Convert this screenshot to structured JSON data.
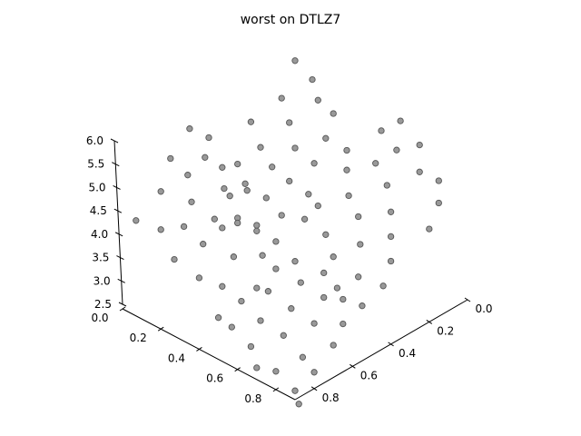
{
  "chart_data": {
    "type": "scatter",
    "projection": "3d",
    "title": "worst on DTLZ7",
    "xlabel": "",
    "ylabel": "",
    "zlabel": "",
    "xlim": [
      0.0,
      0.9
    ],
    "ylim": [
      0.0,
      0.9
    ],
    "zlim": [
      2.5,
      6.0
    ],
    "x_ticks": [
      "0.0",
      "0.2",
      "0.4",
      "0.6",
      "0.8"
    ],
    "y_ticks": [
      "0.0",
      "0.2",
      "0.4",
      "0.6",
      "0.8"
    ],
    "z_ticks": [
      "2.5",
      "3.0",
      "3.5",
      "4.0",
      "4.5",
      "5.0",
      "5.5",
      "6.0"
    ],
    "grid": false,
    "marker_color": "#999999",
    "marker_edge": "#555555",
    "series": [
      {
        "points": [
          {
            "x": 0.05,
            "y": 0.05,
            "z": 5.9
          },
          {
            "x": 0.12,
            "y": 0.03,
            "z": 5.6
          },
          {
            "x": 0.2,
            "y": 0.08,
            "z": 5.45
          },
          {
            "x": 0.08,
            "y": 0.15,
            "z": 5.4
          },
          {
            "x": 0.15,
            "y": 0.18,
            "z": 5.1
          },
          {
            "x": 0.25,
            "y": 0.05,
            "z": 5.2
          },
          {
            "x": 0.02,
            "y": 0.25,
            "z": 5.0
          },
          {
            "x": 0.22,
            "y": 0.22,
            "z": 4.8
          },
          {
            "x": 0.1,
            "y": 0.28,
            "z": 4.7
          },
          {
            "x": 0.28,
            "y": 0.12,
            "z": 4.9
          },
          {
            "x": 0.18,
            "y": 0.3,
            "z": 4.5
          },
          {
            "x": 0.05,
            "y": 0.35,
            "z": 4.4
          },
          {
            "x": 0.3,
            "y": 0.2,
            "z": 4.6
          },
          {
            "x": 0.25,
            "y": 0.28,
            "z": 4.3
          },
          {
            "x": 0.12,
            "y": 0.38,
            "z": 4.2
          },
          {
            "x": 0.35,
            "y": 0.08,
            "z": 4.7
          },
          {
            "x": 0.2,
            "y": 0.35,
            "z": 4.0
          },
          {
            "x": 0.32,
            "y": 0.25,
            "z": 4.1
          },
          {
            "x": 0.08,
            "y": 0.42,
            "z": 3.95
          },
          {
            "x": 0.28,
            "y": 0.35,
            "z": 3.8
          },
          {
            "x": 0.15,
            "y": 0.45,
            "z": 3.7
          },
          {
            "x": 0.35,
            "y": 0.3,
            "z": 3.75
          },
          {
            "x": 0.22,
            "y": 0.42,
            "z": 3.5
          },
          {
            "x": 0.3,
            "y": 0.4,
            "z": 3.4
          },
          {
            "x": 0.1,
            "y": 0.48,
            "z": 3.45
          },
          {
            "x": 0.05,
            "y": 0.6,
            "z": 5.75
          },
          {
            "x": 0.1,
            "y": 0.55,
            "z": 5.55
          },
          {
            "x": 0.15,
            "y": 0.62,
            "z": 5.4
          },
          {
            "x": 0.05,
            "y": 0.7,
            "z": 5.35
          },
          {
            "x": 0.2,
            "y": 0.58,
            "z": 5.2
          },
          {
            "x": 0.12,
            "y": 0.68,
            "z": 5.1
          },
          {
            "x": 0.08,
            "y": 0.78,
            "z": 4.9
          },
          {
            "x": 0.25,
            "y": 0.62,
            "z": 4.95
          },
          {
            "x": 0.18,
            "y": 0.72,
            "z": 4.75
          },
          {
            "x": 0.3,
            "y": 0.55,
            "z": 4.85
          },
          {
            "x": 0.22,
            "y": 0.8,
            "z": 4.5
          },
          {
            "x": 0.28,
            "y": 0.7,
            "z": 4.55
          },
          {
            "x": 0.15,
            "y": 0.85,
            "z": 4.4
          },
          {
            "x": 0.35,
            "y": 0.65,
            "z": 4.5
          },
          {
            "x": 0.05,
            "y": 0.88,
            "z": 4.45
          },
          {
            "x": 0.3,
            "y": 0.78,
            "z": 4.25
          },
          {
            "x": 0.38,
            "y": 0.58,
            "z": 4.35
          },
          {
            "x": 0.25,
            "y": 0.88,
            "z": 4.05
          },
          {
            "x": 0.4,
            "y": 0.72,
            "z": 4.05
          },
          {
            "x": 0.35,
            "y": 0.85,
            "z": 3.8
          },
          {
            "x": 0.45,
            "y": 0.62,
            "z": 3.95
          },
          {
            "x": 0.42,
            "y": 0.8,
            "z": 3.65
          },
          {
            "x": 0.5,
            "y": 0.7,
            "z": 3.55
          },
          {
            "x": 0.48,
            "y": 0.88,
            "z": 3.3
          },
          {
            "x": 0.6,
            "y": 0.05,
            "z": 5.8
          },
          {
            "x": 0.55,
            "y": 0.1,
            "z": 5.6
          },
          {
            "x": 0.65,
            "y": 0.12,
            "z": 5.45
          },
          {
            "x": 0.7,
            "y": 0.05,
            "z": 5.5
          },
          {
            "x": 0.6,
            "y": 0.18,
            "z": 5.2
          },
          {
            "x": 0.75,
            "y": 0.1,
            "z": 5.15
          },
          {
            "x": 0.52,
            "y": 0.25,
            "z": 5.05
          },
          {
            "x": 0.68,
            "y": 0.2,
            "z": 4.95
          },
          {
            "x": 0.8,
            "y": 0.05,
            "z": 4.95
          },
          {
            "x": 0.58,
            "y": 0.3,
            "z": 4.75
          },
          {
            "x": 0.75,
            "y": 0.25,
            "z": 4.65
          },
          {
            "x": 0.85,
            "y": 0.1,
            "z": 4.7
          },
          {
            "x": 0.65,
            "y": 0.32,
            "z": 4.5
          },
          {
            "x": 0.5,
            "y": 0.38,
            "z": 4.55
          },
          {
            "x": 0.8,
            "y": 0.3,
            "z": 4.35
          },
          {
            "x": 0.88,
            "y": 0.18,
            "z": 4.4
          },
          {
            "x": 0.72,
            "y": 0.38,
            "z": 4.2
          },
          {
            "x": 0.58,
            "y": 0.42,
            "z": 4.2
          },
          {
            "x": 0.85,
            "y": 0.35,
            "z": 4.05
          },
          {
            "x": 0.65,
            "y": 0.45,
            "z": 3.95
          },
          {
            "x": 0.78,
            "y": 0.45,
            "z": 3.8
          },
          {
            "x": 0.88,
            "y": 0.42,
            "z": 3.75
          },
          {
            "x": 0.72,
            "y": 0.5,
            "z": 3.55
          },
          {
            "x": 0.85,
            "y": 0.5,
            "z": 3.45
          },
          {
            "x": 0.6,
            "y": 0.6,
            "z": 4.1
          },
          {
            "x": 0.55,
            "y": 0.65,
            "z": 3.95
          },
          {
            "x": 0.65,
            "y": 0.62,
            "z": 3.8
          },
          {
            "x": 0.7,
            "y": 0.55,
            "z": 3.95
          },
          {
            "x": 0.58,
            "y": 0.72,
            "z": 3.7
          },
          {
            "x": 0.75,
            "y": 0.6,
            "z": 3.65
          },
          {
            "x": 0.52,
            "y": 0.8,
            "z": 3.55
          },
          {
            "x": 0.68,
            "y": 0.7,
            "z": 3.5
          },
          {
            "x": 0.8,
            "y": 0.55,
            "z": 3.6
          },
          {
            "x": 0.62,
            "y": 0.8,
            "z": 3.35
          },
          {
            "x": 0.78,
            "y": 0.68,
            "z": 3.35
          },
          {
            "x": 0.85,
            "y": 0.6,
            "z": 3.3
          },
          {
            "x": 0.55,
            "y": 0.88,
            "z": 3.25
          },
          {
            "x": 0.72,
            "y": 0.78,
            "z": 3.2
          },
          {
            "x": 0.88,
            "y": 0.68,
            "z": 3.1
          },
          {
            "x": 0.65,
            "y": 0.88,
            "z": 3.05
          },
          {
            "x": 0.82,
            "y": 0.78,
            "z": 2.95
          },
          {
            "x": 0.78,
            "y": 0.88,
            "z": 2.8
          },
          {
            "x": 0.9,
            "y": 0.8,
            "z": 2.85
          },
          {
            "x": 0.88,
            "y": 0.88,
            "z": 2.6
          },
          {
            "x": 0.7,
            "y": 0.9,
            "z": 2.75
          },
          {
            "x": 0.92,
            "y": 0.9,
            "z": 2.45
          }
        ]
      }
    ]
  }
}
